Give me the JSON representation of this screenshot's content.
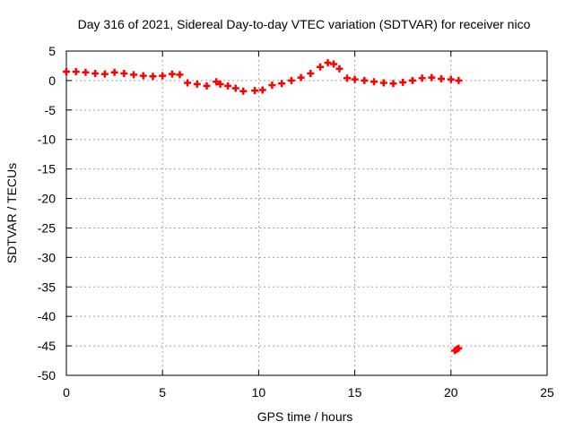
{
  "chart_data": {
    "type": "scatter",
    "title": "Day 316 of 2021, Sidereal Day-to-day VTEC variation (SDTVAR) for receiver nico",
    "xlabel": "GPS time / hours",
    "ylabel": "SDTVAR / TECUs",
    "xlim": [
      0,
      25
    ],
    "ylim": [
      -50,
      5
    ],
    "xticks": [
      0,
      5,
      10,
      15,
      20,
      25
    ],
    "xtick_labels": [
      "0",
      "5",
      "10",
      "15",
      "20",
      "25"
    ],
    "yticks": [
      5,
      0,
      -5,
      -10,
      -15,
      -20,
      -25,
      -30,
      -35,
      -40,
      -45,
      -50
    ],
    "ytick_labels": [
      "5",
      "0",
      "-5",
      "-10",
      "-15",
      "-20",
      "-25",
      "-30",
      "-35",
      "-40",
      "-45",
      "-50"
    ],
    "grid": true,
    "marker_color": "#ff0000",
    "series": [
      {
        "name": "SDTVAR",
        "x": [
          0.0,
          0.5,
          1.0,
          1.5,
          2.0,
          2.5,
          3.0,
          3.5,
          4.0,
          4.5,
          5.0,
          5.5,
          5.9,
          6.3,
          6.8,
          7.3,
          7.8,
          8.0,
          8.4,
          8.8,
          9.2,
          9.8,
          10.2,
          10.7,
          11.2,
          11.7,
          12.2,
          12.7,
          13.2,
          13.6,
          13.9,
          14.2,
          14.6,
          15.0,
          15.5,
          16.0,
          16.5,
          17.0,
          17.5,
          18.0,
          18.5,
          19.0,
          19.5,
          20.0,
          20.4,
          20.2,
          20.3,
          20.4
        ],
        "y": [
          1.5,
          1.5,
          1.4,
          1.2,
          1.1,
          1.4,
          1.2,
          1.0,
          0.8,
          0.7,
          0.8,
          1.1,
          1.0,
          -0.4,
          -0.6,
          -0.9,
          -0.2,
          -0.6,
          -0.9,
          -1.3,
          -1.8,
          -1.7,
          -1.6,
          -0.8,
          -0.5,
          0.0,
          0.5,
          1.2,
          2.3,
          3.0,
          2.8,
          2.0,
          0.4,
          0.2,
          0.0,
          -0.2,
          -0.4,
          -0.5,
          -0.3,
          0.0,
          0.4,
          0.5,
          0.3,
          0.2,
          0.0,
          -45.8,
          -45.6,
          -45.4
        ]
      }
    ]
  }
}
